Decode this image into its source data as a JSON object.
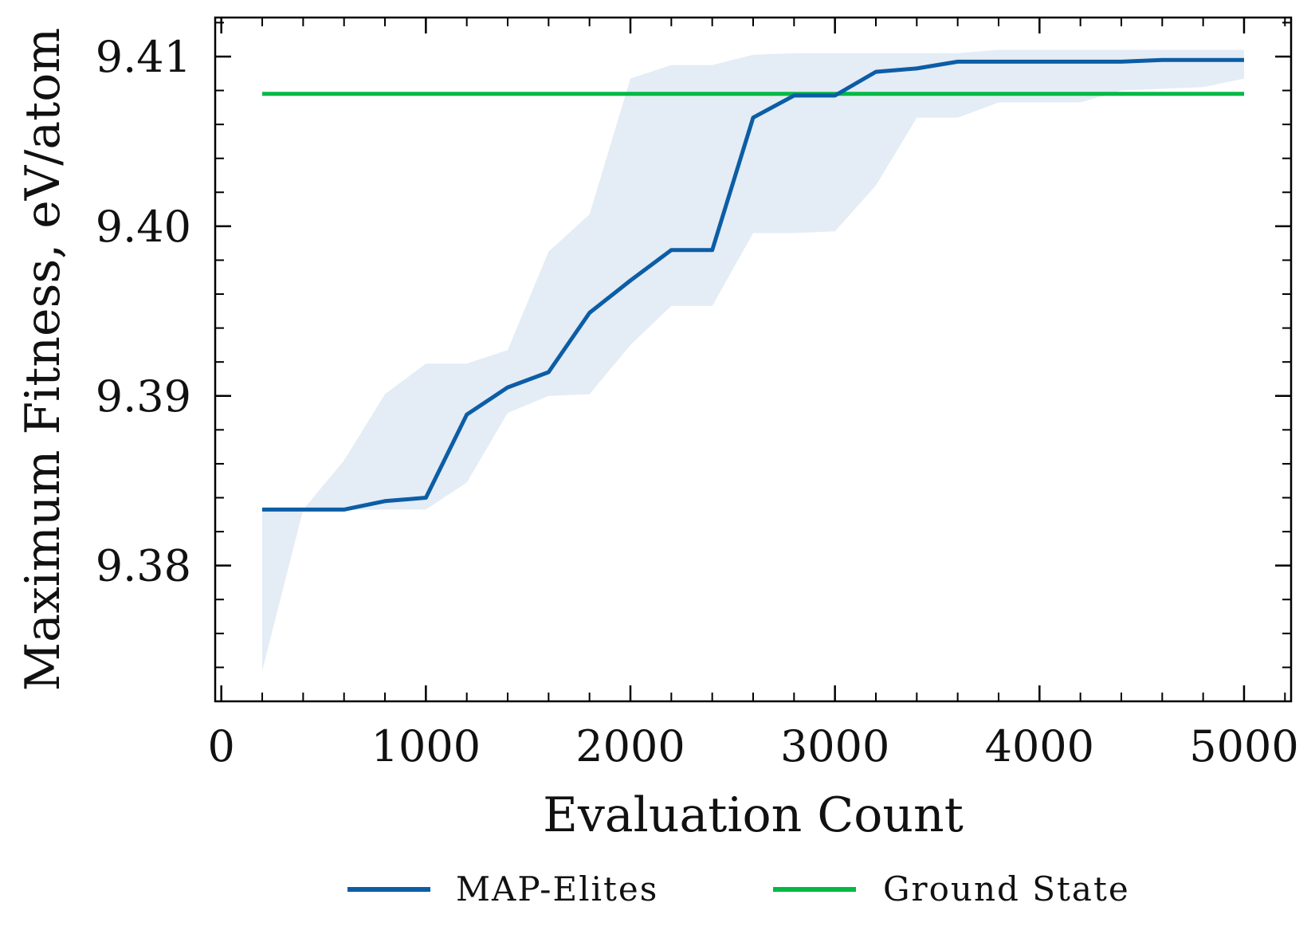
{
  "chart_data": {
    "type": "line",
    "title": "",
    "xlabel": "Evaluation Count",
    "ylabel": "Maximum Fitness, eV/atom",
    "xlim": [
      -30,
      5230
    ],
    "ylim": [
      9.372,
      9.4123
    ],
    "xticks": [
      0,
      1000,
      2000,
      3000,
      4000,
      5000
    ],
    "xtick_labels": [
      "0",
      "1000",
      "2000",
      "3000",
      "4000",
      "5000"
    ],
    "yticks": [
      9.38,
      9.39,
      9.4,
      9.41
    ],
    "ytick_labels": [
      "9.38",
      "9.39",
      "9.40",
      "9.41"
    ],
    "x": [
      200,
      400,
      600,
      800,
      1000,
      1200,
      1400,
      1600,
      1800,
      2000,
      2200,
      2400,
      2600,
      2800,
      3000,
      3200,
      3400,
      3600,
      3800,
      4000,
      4200,
      4400,
      4600,
      4800,
      5000
    ],
    "series": [
      {
        "name": "MAP-Elites",
        "color": "#0C5DA5",
        "values": [
          9.3833,
          9.3833,
          9.3833,
          9.3838,
          9.384,
          9.3889,
          9.3905,
          9.3914,
          9.3949,
          9.3968,
          9.3986,
          9.3986,
          9.4064,
          9.4077,
          9.4077,
          9.4091,
          9.4093,
          9.4097,
          9.4097,
          9.4097,
          9.4097,
          9.4097,
          9.4098,
          9.4098,
          9.4098
        ],
        "band_lower": [
          9.3738,
          9.3833,
          9.3833,
          9.3833,
          9.3833,
          9.3849,
          9.389,
          9.39,
          9.3901,
          9.393,
          9.3953,
          9.3953,
          9.3996,
          9.3996,
          9.3997,
          9.4024,
          9.4064,
          9.4064,
          9.4073,
          9.4073,
          9.4073,
          9.408,
          9.4081,
          9.4082,
          9.4087
        ],
        "band_upper": [
          9.3833,
          9.3833,
          9.3862,
          9.3901,
          9.3919,
          9.3919,
          9.3927,
          9.3985,
          9.4007,
          9.4087,
          9.4095,
          9.4095,
          9.4101,
          9.4102,
          9.4102,
          9.4102,
          9.4102,
          9.4102,
          9.4104,
          9.4104,
          9.4104,
          9.4104,
          9.4104,
          9.4104,
          9.4104
        ],
        "band_color": "#E4ECF5"
      },
      {
        "name": "Ground State",
        "color": "#00B945",
        "x": [
          200,
          5000
        ],
        "values": [
          9.4078,
          9.4078
        ]
      }
    ],
    "legend": {
      "placement": "bottom-center",
      "entries": [
        "MAP-Elites",
        "Ground State"
      ]
    },
    "grid": false
  }
}
